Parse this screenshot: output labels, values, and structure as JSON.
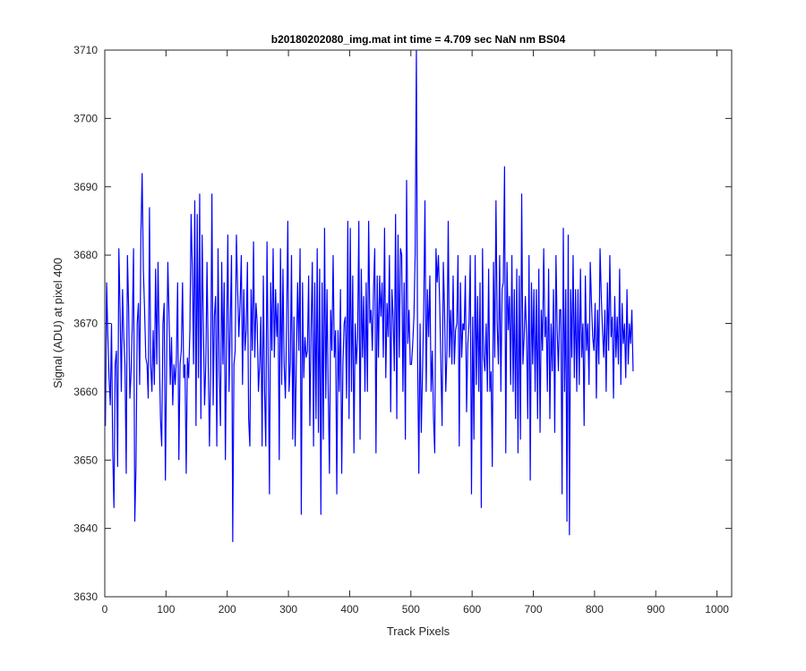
{
  "chart_data": {
    "type": "line",
    "title": "b20180202080_img.mat int time = 4.709 sec  NaN nm BS04",
    "xlabel": "Track Pixels",
    "ylabel": "Signal (ADU) at pixel 400",
    "xlim": [
      0,
      1024
    ],
    "ylim": [
      3630,
      3710
    ],
    "x_ticks": [
      0,
      100,
      200,
      300,
      400,
      500,
      600,
      700,
      800,
      900,
      1000
    ],
    "y_ticks": [
      3630,
      3640,
      3650,
      3660,
      3670,
      3680,
      3690,
      3700,
      3710
    ],
    "grid": false,
    "series": [
      {
        "color": "#0000ff",
        "x_start": 1,
        "x_step": 2,
        "values": [
          3655,
          3676,
          3668,
          3662,
          3658,
          3670,
          3651,
          3643,
          3664,
          3666,
          3649,
          3681,
          3672,
          3660,
          3675,
          3668,
          3664,
          3648,
          3680,
          3672,
          3659,
          3663,
          3670,
          3681,
          3641,
          3649,
          3670,
          3673,
          3661,
          3683,
          3692,
          3678,
          3672,
          3665,
          3664,
          3659,
          3687,
          3664,
          3660,
          3669,
          3661,
          3678,
          3664,
          3679,
          3666,
          3656,
          3652,
          3670,
          3673,
          3647,
          3664,
          3679,
          3671,
          3661,
          3668,
          3658,
          3664,
          3661,
          3665,
          3676,
          3650,
          3664,
          3666,
          3676,
          3662,
          3664,
          3648,
          3665,
          3662,
          3669,
          3686,
          3678,
          3664,
          3688,
          3655,
          3686,
          3662,
          3689,
          3656,
          3683,
          3670,
          3658,
          3664,
          3679,
          3664,
          3652,
          3663,
          3689,
          3658,
          3671,
          3674,
          3652,
          3681,
          3663,
          3655,
          3679,
          3664,
          3676,
          3650,
          3668,
          3683,
          3660,
          3670,
          3680,
          3638,
          3664,
          3666,
          3683,
          3675,
          3668,
          3673,
          3680,
          3661,
          3675,
          3666,
          3669,
          3679,
          3656,
          3652,
          3675,
          3666,
          3682,
          3665,
          3673,
          3670,
          3660,
          3664,
          3671,
          3652,
          3677,
          3660,
          3652,
          3682,
          3664,
          3645,
          3676,
          3666,
          3681,
          3665,
          3675,
          3668,
          3673,
          3650,
          3681,
          3661,
          3678,
          3664,
          3659,
          3670,
          3685,
          3660,
          3664,
          3680,
          3653,
          3671,
          3652,
          3665,
          3676,
          3666,
          3681,
          3642,
          3676,
          3662,
          3668,
          3665,
          3666,
          3677,
          3655,
          3669,
          3679,
          3652,
          3676,
          3656,
          3681,
          3654,
          3678,
          3642,
          3676,
          3653,
          3684,
          3659,
          3675,
          3660,
          3648,
          3672,
          3666,
          3680,
          3665,
          3669,
          3645,
          3669,
          3660,
          3675,
          3648,
          3664,
          3670,
          3671,
          3659,
          3685,
          3656,
          3684,
          3660,
          3677,
          3651,
          3670,
          3664,
          3668,
          3685,
          3653,
          3678,
          3665,
          3674,
          3660,
          3676,
          3660,
          3685,
          3670,
          3672,
          3666,
          3675,
          3681,
          3651,
          3677,
          3665,
          3677,
          3671,
          3676,
          3665,
          3684,
          3662,
          3673,
          3668,
          3680,
          3657,
          3675,
          3671,
          3663,
          3686,
          3656,
          3683,
          3665,
          3681,
          3680,
          3660,
          3676,
          3653,
          3691,
          3667,
          3672,
          3664,
          3664,
          3667,
          3671,
          3680,
          3710,
          3665,
          3648,
          3670,
          3654,
          3663,
          3672,
          3688,
          3660,
          3675,
          3668,
          3677,
          3660,
          3666,
          3656,
          3651,
          3681,
          3676,
          3680,
          3673,
          3664,
          3655,
          3679,
          3672,
          3660,
          3666,
          3685,
          3665,
          3672,
          3664,
          3677,
          3664,
          3669,
          3670,
          3680,
          3652,
          3676,
          3665,
          3670,
          3669,
          3677,
          3657,
          3667,
          3670,
          3680,
          3645,
          3671,
          3653,
          3680,
          3661,
          3674,
          3660,
          3676,
          3643,
          3681,
          3665,
          3663,
          3670,
          3660,
          3678,
          3660,
          3663,
          3649,
          3679,
          3665,
          3688,
          3670,
          3664,
          3680,
          3660,
          3675,
          3676,
          3693,
          3651,
          3679,
          3669,
          3674,
          3661,
          3680,
          3660,
          3675,
          3656,
          3678,
          3651,
          3677,
          3653,
          3689,
          3664,
          3668,
          3674,
          3668,
          3656,
          3680,
          3647,
          3676,
          3664,
          3675,
          3660,
          3675,
          3656,
          3678,
          3654,
          3672,
          3666,
          3681,
          3668,
          3671,
          3660,
          3678,
          3656,
          3670,
          3663,
          3675,
          3654,
          3680,
          3669,
          3663,
          3672,
          3672,
          3645,
          3684,
          3660,
          3675,
          3641,
          3683,
          3639,
          3675,
          3665,
          3680,
          3662,
          3675,
          3660,
          3675,
          3661,
          3678,
          3665,
          3670,
          3655,
          3677,
          3666,
          3670,
          3661,
          3679,
          3673,
          3668,
          3666,
          3673,
          3659,
          3672,
          3664,
          3681,
          3674,
          3669,
          3665,
          3672,
          3660,
          3676,
          3666,
          3680,
          3668,
          3671,
          3659,
          3674,
          3665,
          3671,
          3664,
          3678,
          3661,
          3673,
          3667,
          3670,
          3662,
          3675,
          3664,
          3670,
          3667,
          3672,
          3663
        ]
      }
    ]
  }
}
